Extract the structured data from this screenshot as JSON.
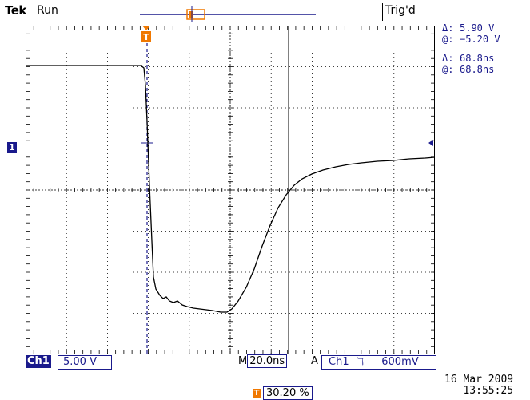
{
  "header": {
    "brand": "Tek",
    "acquisition_state": "Run",
    "trigger_status": "Trig'd"
  },
  "cursor_readout": {
    "amplitude": {
      "delta_symbol": "Δ:",
      "delta_value": "5.90 V",
      "at_symbol": "@:",
      "at_value": "−5.20 V"
    },
    "time": {
      "delta_symbol": "Δ:",
      "delta_value": "68.8ns",
      "at_symbol": "@:",
      "at_value": "68.8ns"
    }
  },
  "channel_marker": "1",
  "trigger_marker": "T",
  "footer": {
    "channel_label": "Ch1",
    "channel_scale": "5.00 V",
    "timebase_prefix": "M",
    "timebase_value": "20.0ns",
    "trigger_mode_prefix": "A",
    "trigger_source": "Ch1",
    "trigger_slope": "ℸ",
    "trigger_level": "600mV",
    "trigger_position": "30.20 %",
    "date": "16 Mar  2009",
    "time": "13:55:25"
  },
  "colors": {
    "accent": "#1a1a8c",
    "trigger": "#f07800",
    "trace": "#000000",
    "grid": "#000000"
  }
}
